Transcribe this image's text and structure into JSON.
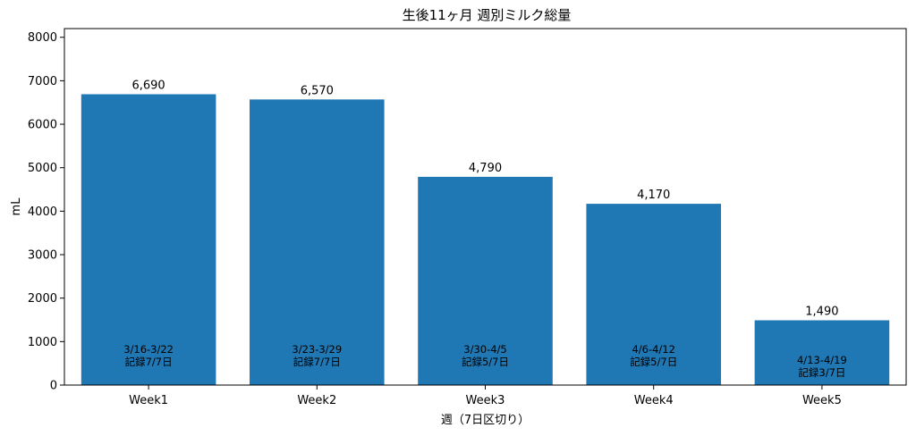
{
  "chart_data": {
    "type": "bar",
    "title": "生後11ヶ月 週別ミルク総量",
    "xlabel": "週（7日区切り）",
    "ylabel": "mL",
    "categories": [
      "Week1",
      "Week2",
      "Week3",
      "Week4",
      "Week5"
    ],
    "values": [
      6690,
      6570,
      4790,
      4170,
      1490
    ],
    "value_labels": [
      "6,690",
      "6,570",
      "4,790",
      "4,170",
      "1,490"
    ],
    "annotations": [
      [
        "3/16-3/22",
        "記録7/7日"
      ],
      [
        "3/23-3/29",
        "記録7/7日"
      ],
      [
        "3/30-4/5",
        "記録5/7日"
      ],
      [
        "4/6-4/12",
        "記録5/7日"
      ],
      [
        "4/13-4/19",
        "記録3/7日"
      ]
    ],
    "ylim": [
      0,
      8200
    ],
    "yticks": [
      0,
      1000,
      2000,
      3000,
      4000,
      5000,
      6000,
      7000,
      8000
    ],
    "bar_color": "#1f77b4",
    "grid": false,
    "legend": "none"
  }
}
